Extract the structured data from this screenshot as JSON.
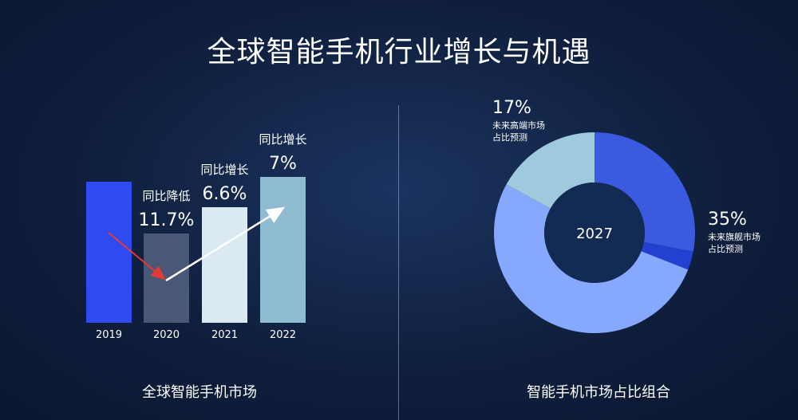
{
  "title": "全球智能手机行业增长与机遇",
  "chart_data": [
    {
      "type": "bar",
      "caption": "全球智能手机市场",
      "categories": [
        "2019",
        "2020",
        "2021",
        "2022"
      ],
      "colors": [
        "#2e4bf2",
        "#4a5878",
        "#dbe9f3",
        "#8fbcd3"
      ],
      "annotations": [
        {
          "category": "2020",
          "label": "同比降低",
          "value_text": "11.7%"
        },
        {
          "category": "2021",
          "label": "同比增长",
          "value_text": "6.6%"
        },
        {
          "category": "2022",
          "label": "同比增长",
          "value_text": "7%"
        }
      ],
      "trend": {
        "down": [
          "2019",
          "2020"
        ],
        "up": [
          "2020",
          "2022"
        ],
        "down_color": "#e53935",
        "up_color": "#ffffff"
      }
    },
    {
      "type": "pie",
      "caption": "智能手机市场占比组合",
      "center_label": "2027",
      "slices": [
        {
          "value": 28,
          "color": "#3a5ae0"
        },
        {
          "value": 3,
          "color": "#2440d0"
        },
        {
          "value": 52,
          "color": "#86a8ff"
        },
        {
          "value": 17,
          "color": "#9fc9dc"
        }
      ],
      "callouts": [
        {
          "percent": "17%",
          "line1": "未来高端市场",
          "line2": "占比预测"
        },
        {
          "percent": "35%",
          "line1": "未来旗舰市场",
          "line2": "占比预测"
        }
      ]
    }
  ]
}
